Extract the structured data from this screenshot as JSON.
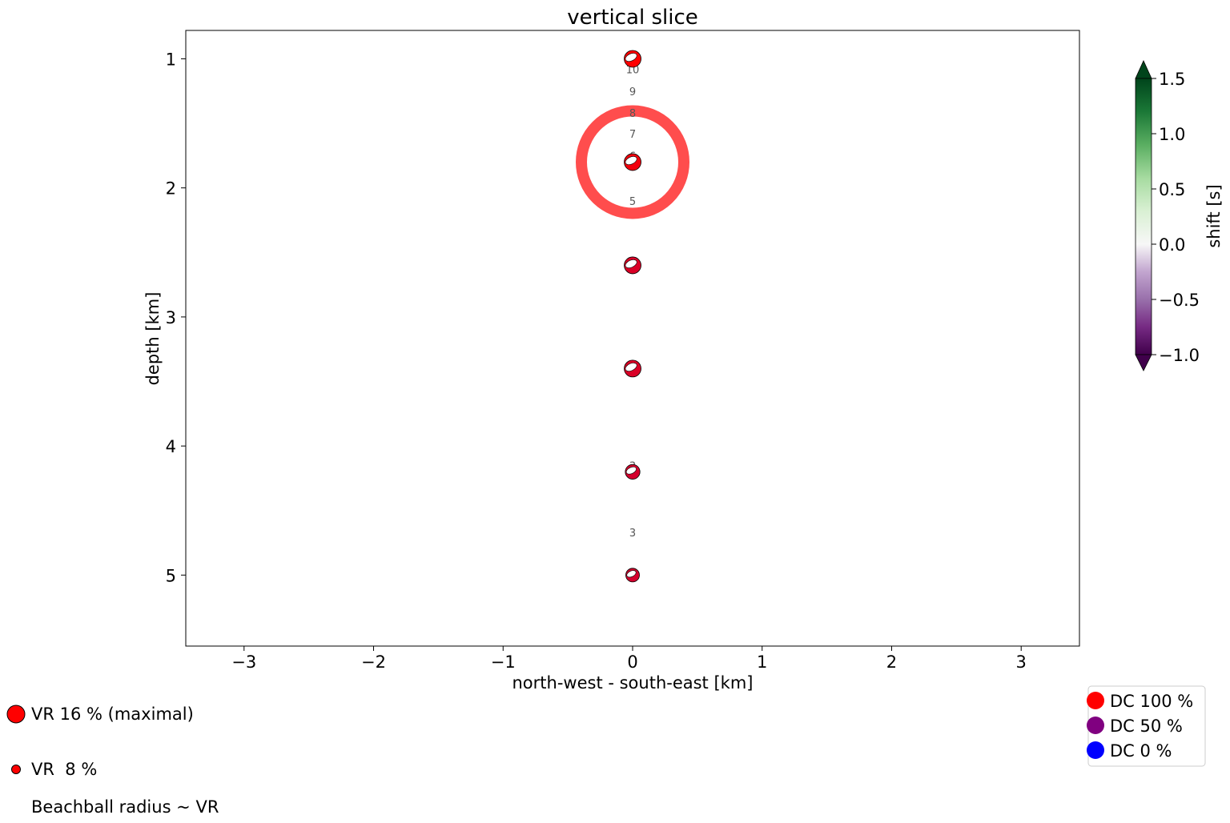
{
  "chart_data": {
    "type": "scatter",
    "title": "vertical slice",
    "xlabel": "north-west - south-east [km]",
    "ylabel": "depth [km]",
    "xlim": [
      -3.45,
      3.45
    ],
    "ylim": [
      5.55,
      0.78
    ],
    "y_inverted": true,
    "xticks": [
      -3,
      -2,
      -1,
      0,
      1,
      2,
      3
    ],
    "xtick_labels": [
      "−3",
      "−2",
      "−1",
      "0",
      "1",
      "2",
      "3"
    ],
    "yticks": [
      1,
      2,
      3,
      4,
      5
    ],
    "ytick_labels": [
      "1",
      "2",
      "3",
      "4",
      "5"
    ],
    "beachballs": [
      {
        "x": 0,
        "depth": 1.0,
        "shift": -0.1,
        "dc": 100,
        "vr": 16
      },
      {
        "x": 0,
        "depth": 1.8,
        "shift": -0.3,
        "dc": 90,
        "vr": 16
      },
      {
        "x": 0,
        "depth": 2.6,
        "shift": -0.6,
        "dc": 70,
        "vr": 16
      },
      {
        "x": 0,
        "depth": 3.4,
        "shift": -0.6,
        "dc": 70,
        "vr": 16
      },
      {
        "x": 0,
        "depth": 4.2,
        "shift": -0.6,
        "dc": 65,
        "vr": 14
      },
      {
        "x": 0,
        "depth": 5.0,
        "shift": -0.6,
        "dc": 65,
        "vr": 13
      }
    ],
    "highlight": {
      "x": 0,
      "depth": 1.8,
      "color": "#ff4d4d"
    },
    "annotations": [
      {
        "text": "10",
        "x": 0,
        "depth": 1.08
      },
      {
        "text": "9",
        "x": 0,
        "depth": 1.25
      },
      {
        "text": "8",
        "x": 0,
        "depth": 1.42
      },
      {
        "text": "7",
        "x": 0,
        "depth": 1.58
      },
      {
        "text": "6",
        "x": 0,
        "depth": 1.75
      },
      {
        "text": "5",
        "x": 0,
        "depth": 2.1
      },
      {
        "text": "3",
        "x": 0,
        "depth": 4.15
      },
      {
        "text": "3",
        "x": 0,
        "depth": 4.67
      }
    ],
    "colorbar": {
      "label": "shift [s]",
      "vmin": -1.0,
      "vmax": 1.5,
      "ticks": [
        1.5,
        1.0,
        0.5,
        0.0,
        -0.5,
        -1.0
      ],
      "tick_labels": [
        "1.5",
        "1.0",
        "0.5",
        "0.0",
        "−0.5",
        "−1.0"
      ],
      "colormap": "PRGn",
      "extend": "both"
    },
    "legend_vr": [
      {
        "label": "VR 16 % (maximal)",
        "vr": 16
      },
      {
        "label": "VR  8 %",
        "vr": 8
      },
      {
        "label": "Beachball radius ~ VR"
      }
    ],
    "legend_dc": [
      {
        "label": "DC 100 %",
        "color": "#ff0000"
      },
      {
        "label": "DC 50 %",
        "color": "#800080"
      },
      {
        "label": "DC 0 %",
        "color": "#0000ff"
      }
    ],
    "legend_placement": "bottom-right"
  }
}
